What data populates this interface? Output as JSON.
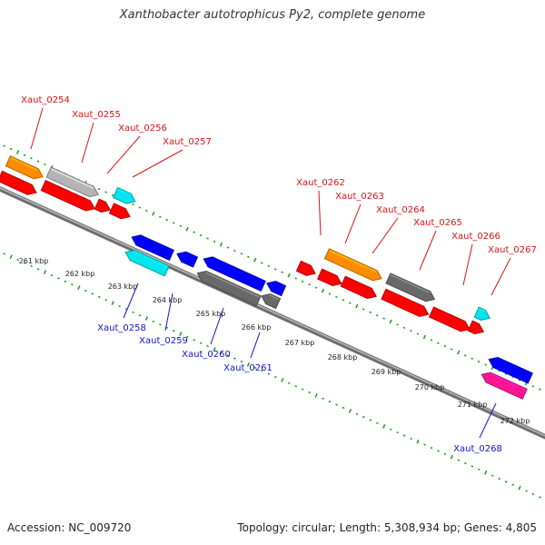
{
  "title": "Xanthobacter autotrophicus Py2, complete genome",
  "footer": {
    "accession": "Accession: NC_009720",
    "summary": "Topology: circular; Length: 5,308,934 bp; Genes: 4,805"
  },
  "colors": {
    "backbone": "#808080",
    "ticks": "#22a022",
    "forward_label": "#dd1111",
    "reverse_label": "#1111cc",
    "kbp_label": "#222222"
  },
  "kbp_labels": [
    "261 kbp",
    "262 kbp",
    "263 kbp",
    "264 kbp",
    "265 kbp",
    "266 kbp",
    "267 kbp",
    "268 kbp",
    "269 kbp",
    "270 kbp",
    "271 kbp",
    "272 kbp"
  ],
  "forward_genes": [
    {
      "label": "Xaut_0254",
      "color": "#ff8c00"
    },
    {
      "label": "Xaut_0255",
      "color": "#b4b4b4"
    },
    {
      "label": "Xaut_0256",
      "color": "#00e5ee"
    },
    {
      "label": "Xaut_0257",
      "color": "#ff0000"
    },
    {
      "label": "Xaut_0262",
      "color": "#ff0000"
    },
    {
      "label": "Xaut_0263",
      "color": "#ff8c00"
    },
    {
      "label": "Xaut_0264",
      "color": "#ff0000"
    },
    {
      "label": "Xaut_0265",
      "color": "#696969"
    },
    {
      "label": "Xaut_0266",
      "color": "#ff0000"
    },
    {
      "label": "Xaut_0267",
      "color": "#00e5ee"
    }
  ],
  "reverse_genes": [
    {
      "label": "Xaut_0258",
      "color": "#00e5ee"
    },
    {
      "label": "Xaut_0259",
      "color": "#0000ff"
    },
    {
      "label": "Xaut_0260",
      "color": "#696969"
    },
    {
      "label": "Xaut_0261",
      "color": "#696969"
    },
    {
      "label": "Xaut_0268",
      "color": "#ff1493"
    }
  ]
}
